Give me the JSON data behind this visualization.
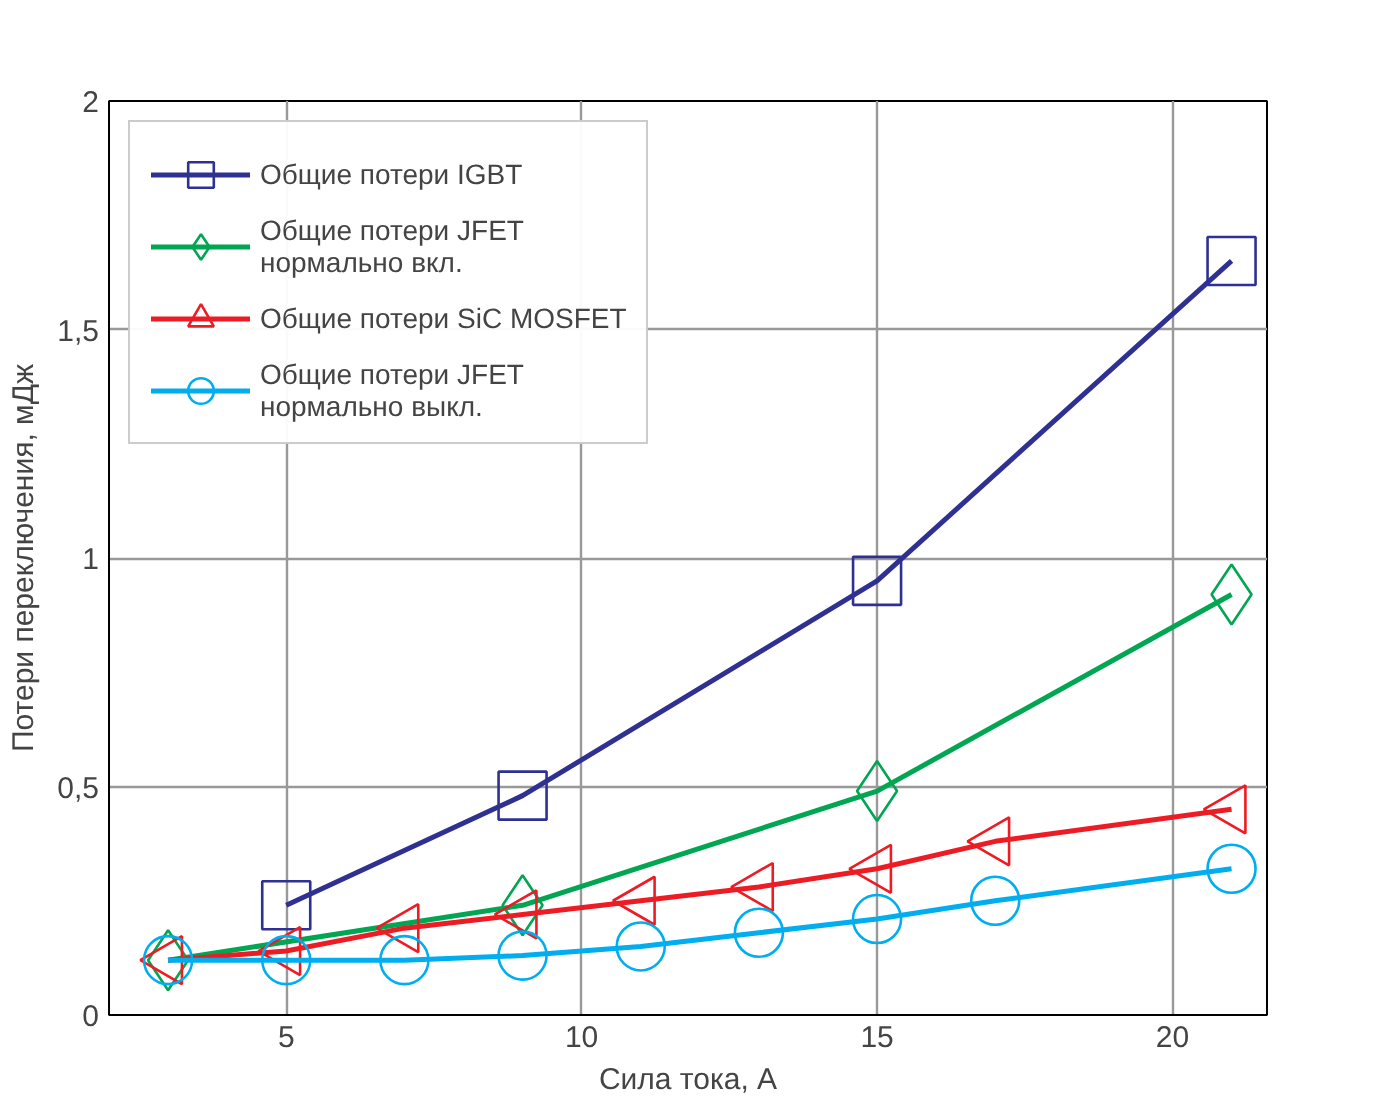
{
  "chart_data": {
    "type": "line",
    "xlabel": "Сила тока, А",
    "ylabel": "Потери переключения, мДж",
    "xlim": [
      2,
      21.6
    ],
    "ylim": [
      0,
      2
    ],
    "xticks": [
      5,
      10,
      15,
      20
    ],
    "yticks": [
      {
        "value": 0,
        "label": "0"
      },
      {
        "value": 0.5,
        "label": "0,5"
      },
      {
        "value": 1,
        "label": "1"
      },
      {
        "value": 1.5,
        "label": "1,5"
      },
      {
        "value": 2,
        "label": "2"
      }
    ],
    "grid": true,
    "legend": "top left",
    "series": [
      {
        "name": "Общие потери IGBT",
        "color": "#2e3192",
        "marker": "square",
        "x": [
          5,
          9,
          15,
          21
        ],
        "values": [
          0.24,
          0.48,
          0.95,
          1.65
        ]
      },
      {
        "name": "Общие потери JFET\nнормально вкл.",
        "color": "#00a651",
        "marker": "diamond",
        "x": [
          3,
          9,
          15,
          21
        ],
        "values": [
          0.12,
          0.24,
          0.49,
          0.92
        ]
      },
      {
        "name": "Общие потери SiC MOSFET",
        "color": "#ed1c24",
        "marker": "triangle",
        "x": [
          3,
          5,
          7,
          9,
          11,
          13,
          15,
          17,
          21
        ],
        "values": [
          0.12,
          0.14,
          0.19,
          0.22,
          0.25,
          0.28,
          0.32,
          0.38,
          0.45
        ]
      },
      {
        "name": "Общие потери JFET\nнормально выкл.",
        "color": "#00aeef",
        "marker": "circle",
        "x": [
          3,
          5,
          7,
          9,
          11,
          13,
          15,
          17,
          21
        ],
        "values": [
          0.12,
          0.12,
          0.12,
          0.13,
          0.15,
          0.18,
          0.21,
          0.25,
          0.32
        ]
      }
    ]
  }
}
